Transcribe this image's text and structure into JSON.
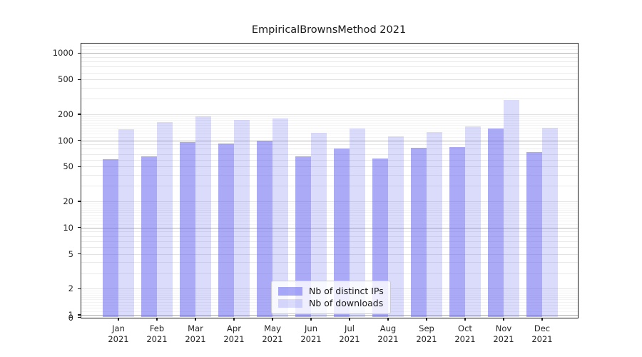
{
  "chart_data": {
    "type": "bar",
    "title": "EmpiricalBrownsMethod 2021",
    "yscale": "log-symlog",
    "y_ticks": [
      1000,
      500,
      200,
      100,
      50,
      20,
      10,
      5,
      2,
      1,
      0
    ],
    "ylim": [
      0,
      1290
    ],
    "grid": true,
    "legend_position": "lower center",
    "months": [
      "Jan",
      "Feb",
      "Mar",
      "Apr",
      "May",
      "Jun",
      "Jul",
      "Aug",
      "Sep",
      "Oct",
      "Nov",
      "Dec"
    ],
    "x_tick_year": "2021",
    "series": [
      {
        "name": "Nb of distinct IPs",
        "color": "rgba(100,100,240,0.55)",
        "color_hex_on_white": "#a9a9f7",
        "values": [
          61,
          66,
          96,
          92,
          100,
          66,
          80,
          62,
          82,
          83,
          137,
          73
        ]
      },
      {
        "name": "Nb of downloads",
        "color": "rgba(100,100,240,0.23)",
        "color_hex_on_white": "#dbdbfa",
        "values": [
          134,
          161,
          190,
          170,
          178,
          122,
          136,
          112,
          124,
          146,
          288,
          139
        ]
      }
    ]
  }
}
